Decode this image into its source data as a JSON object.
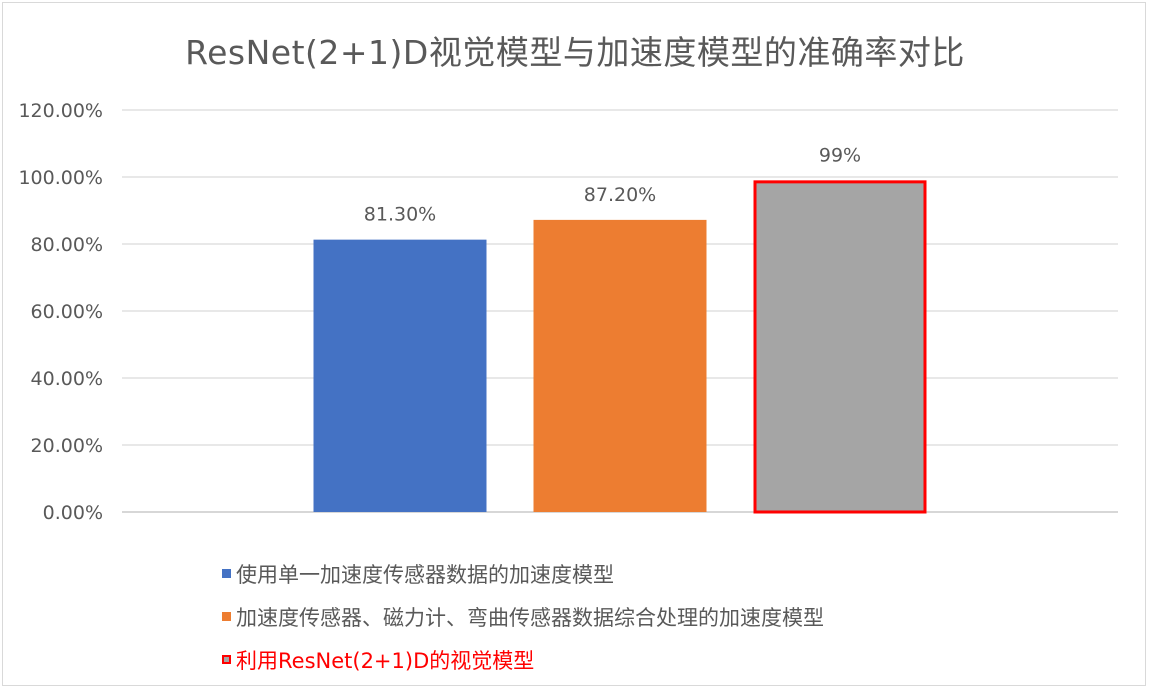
{
  "chart_data": {
    "type": "bar",
    "title": "ResNet(2+1)D视觉模型与加速度模型的准确率对比",
    "xlabel": "",
    "ylabel": "",
    "ylim": [
      0,
      120
    ],
    "y_ticks": [
      "0.00%",
      "20.00%",
      "40.00%",
      "60.00%",
      "80.00%",
      "100.00%",
      "120.00%"
    ],
    "grid": true,
    "legend_position": "bottom",
    "series": [
      {
        "name": "使用单一加速度传感器数据的加速度模型",
        "value": 81.3,
        "label": "81.30%",
        "color": "#4472c4",
        "highlight": false
      },
      {
        "name": "加速度传感器、磁力计、弯曲传感器数据综合处理的加速度模型",
        "value": 87.2,
        "label": "87.20%",
        "color": "#ed7d31",
        "highlight": false
      },
      {
        "name": "利用ResNet(2+1)D的视觉模型",
        "value": 99,
        "label": "99%",
        "color": "#a5a5a5",
        "highlight": true,
        "border_color": "#ff0000"
      }
    ]
  }
}
